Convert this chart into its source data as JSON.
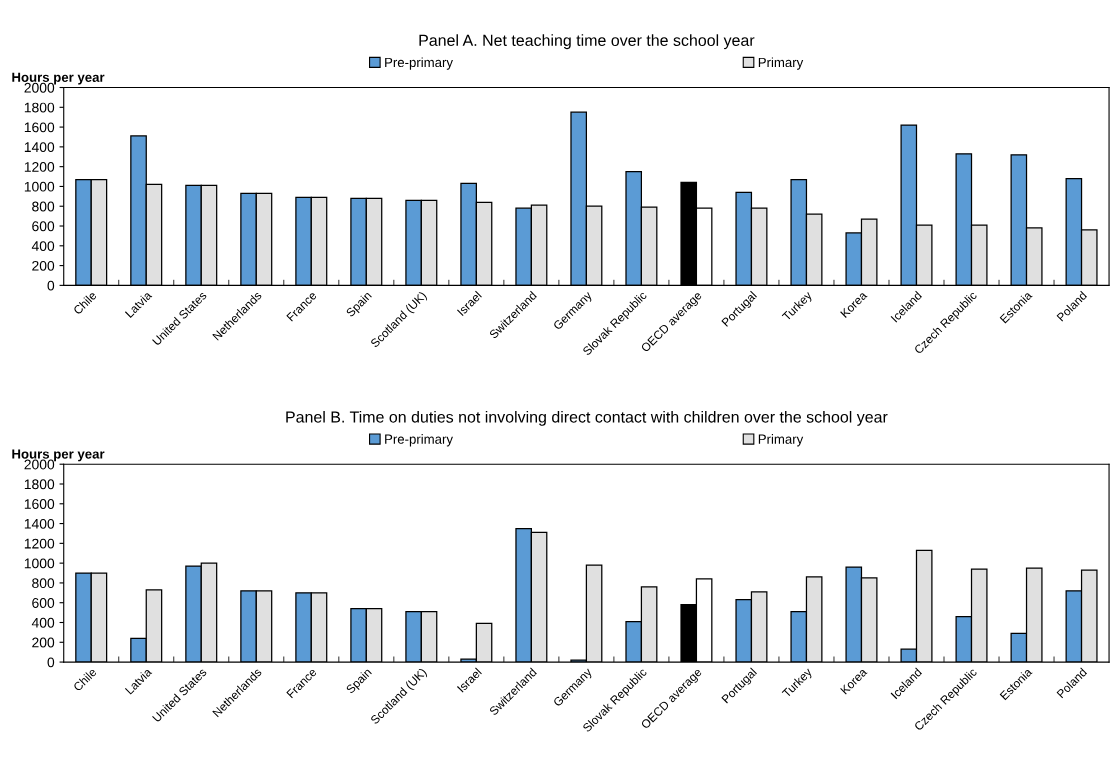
{
  "chart_data": [
    {
      "type": "bar",
      "title": "Panel A. Net teaching time over the school year",
      "ylabel": "Hours per year",
      "categories": [
        "Chile",
        "Latvia",
        "United States",
        "Netherlands",
        "France",
        "Spain",
        "Scotland (UK)",
        "Israel",
        "Switzerland",
        "Germany",
        "Slovak Republic",
        "OECD average",
        "Portugal",
        "Turkey",
        "Korea",
        "Iceland",
        "Czech Republic",
        "Estonia",
        "Poland"
      ],
      "series": [
        {
          "name": "Pre-primary",
          "color": "#5b9bd5",
          "colors": [
            "#5b9bd5",
            "#5b9bd5",
            "#5b9bd5",
            "#5b9bd5",
            "#5b9bd5",
            "#5b9bd5",
            "#5b9bd5",
            "#5b9bd5",
            "#5b9bd5",
            "#5b9bd5",
            "#5b9bd5",
            "#000000",
            "#5b9bd5",
            "#5b9bd5",
            "#5b9bd5",
            "#5b9bd5",
            "#5b9bd5",
            "#5b9bd5",
            "#5b9bd5"
          ],
          "values": [
            1070,
            1510,
            1010,
            930,
            890,
            880,
            860,
            1030,
            780,
            1750,
            1150,
            1040,
            940,
            1070,
            530,
            1620,
            1330,
            1320,
            1080
          ]
        },
        {
          "name": "Primary",
          "color": "#e0e0e0",
          "colors": [
            "#e0e0e0",
            "#e0e0e0",
            "#e0e0e0",
            "#e0e0e0",
            "#e0e0e0",
            "#e0e0e0",
            "#e0e0e0",
            "#e0e0e0",
            "#e0e0e0",
            "#e0e0e0",
            "#e0e0e0",
            "#ffffff",
            "#e0e0e0",
            "#e0e0e0",
            "#e0e0e0",
            "#e0e0e0",
            "#e0e0e0",
            "#e0e0e0",
            "#e0e0e0"
          ],
          "values": [
            1070,
            1020,
            1010,
            930,
            890,
            880,
            860,
            840,
            810,
            800,
            790,
            780,
            780,
            720,
            670,
            610,
            610,
            580,
            560
          ]
        }
      ],
      "ylim": [
        0,
        2000
      ],
      "yticks": [
        0,
        200,
        400,
        600,
        800,
        1000,
        1200,
        1400,
        1600,
        1800,
        2000
      ],
      "grid": false,
      "legend": "top"
    },
    {
      "type": "bar",
      "title": "Panel B. Time on duties not involving direct contact with children over the school year",
      "ylabel": "Hours per year",
      "categories": [
        "Chile",
        "Latvia",
        "United States",
        "Netherlands",
        "France",
        "Spain",
        "Scotland (UK)",
        "Israel",
        "Switzerland",
        "Germany",
        "Slovak Republic",
        "OECD average",
        "Portugal",
        "Turkey",
        "Korea",
        "Iceland",
        "Czech Republic",
        "Estonia",
        "Poland"
      ],
      "series": [
        {
          "name": "Pre-primary",
          "color": "#5b9bd5",
          "colors": [
            "#5b9bd5",
            "#5b9bd5",
            "#5b9bd5",
            "#5b9bd5",
            "#5b9bd5",
            "#5b9bd5",
            "#5b9bd5",
            "#5b9bd5",
            "#5b9bd5",
            "#5b9bd5",
            "#5b9bd5",
            "#000000",
            "#5b9bd5",
            "#5b9bd5",
            "#5b9bd5",
            "#5b9bd5",
            "#5b9bd5",
            "#5b9bd5",
            "#5b9bd5"
          ],
          "values": [
            900,
            240,
            970,
            720,
            700,
            540,
            510,
            30,
            1350,
            20,
            410,
            580,
            630,
            510,
            960,
            130,
            460,
            290,
            720
          ]
        },
        {
          "name": "Primary",
          "color": "#e0e0e0",
          "colors": [
            "#e0e0e0",
            "#e0e0e0",
            "#e0e0e0",
            "#e0e0e0",
            "#e0e0e0",
            "#e0e0e0",
            "#e0e0e0",
            "#e0e0e0",
            "#e0e0e0",
            "#e0e0e0",
            "#e0e0e0",
            "#ffffff",
            "#e0e0e0",
            "#e0e0e0",
            "#e0e0e0",
            "#e0e0e0",
            "#e0e0e0",
            "#e0e0e0",
            "#e0e0e0"
          ],
          "values": [
            900,
            730,
            1000,
            720,
            700,
            540,
            510,
            390,
            1310,
            980,
            760,
            840,
            710,
            860,
            850,
            1130,
            940,
            950,
            930
          ]
        }
      ],
      "ylim": [
        0,
        2000
      ],
      "yticks": [
        0,
        200,
        400,
        600,
        800,
        1000,
        1200,
        1400,
        1600,
        1800,
        2000
      ],
      "grid": false,
      "legend": "top"
    }
  ]
}
